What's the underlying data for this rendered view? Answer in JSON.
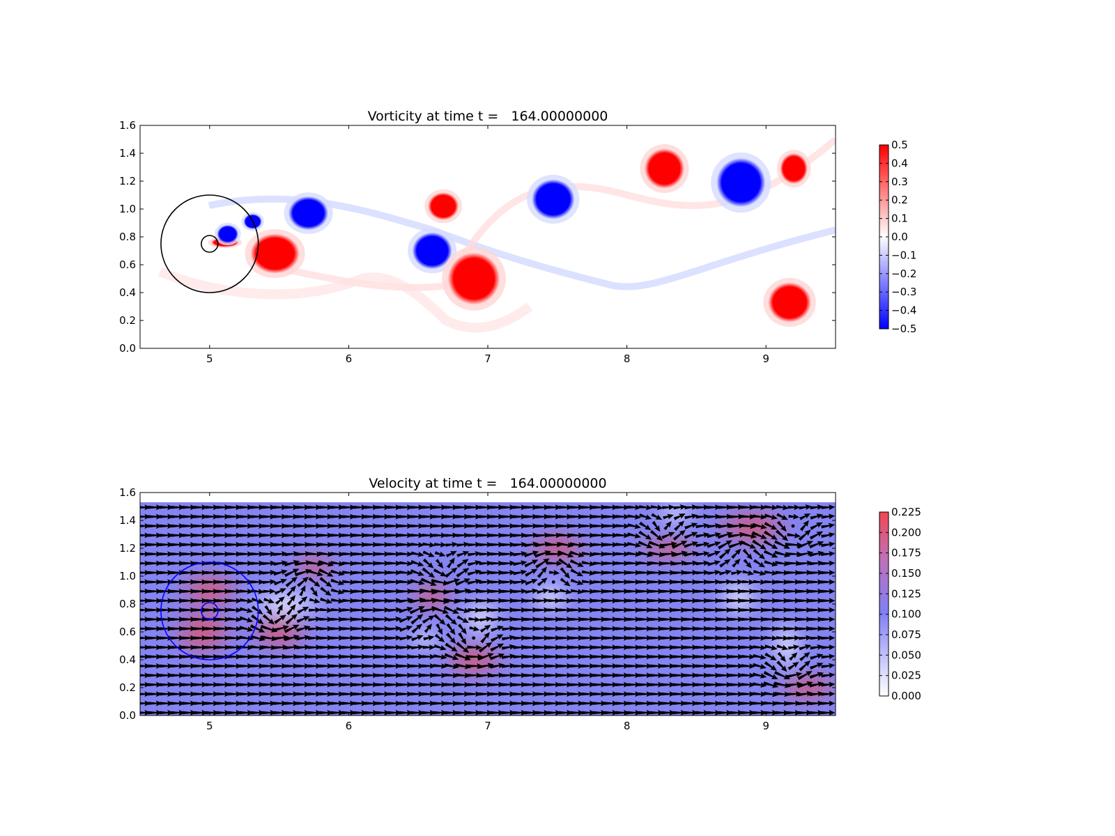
{
  "chart_data": [
    {
      "type": "heatmap",
      "title": "Vorticity at time t =   164.00000000",
      "xlim": [
        4.5,
        9.5
      ],
      "ylim": [
        0.0,
        1.6
      ],
      "xticks": [
        "5",
        "6",
        "7",
        "8",
        "9"
      ],
      "yticks": [
        "0.0",
        "0.2",
        "0.4",
        "0.6",
        "0.8",
        "1.0",
        "1.2",
        "1.4",
        "1.6"
      ],
      "colorbar": {
        "ticks": [
          "0.5",
          "0.4",
          "0.3",
          "0.2",
          "0.1",
          "0.0",
          "−0.1",
          "−0.2",
          "−0.3",
          "−0.4",
          "−0.5"
        ],
        "range": [
          -0.5,
          0.5
        ],
        "colors": [
          "#0000ff",
          "#ffffff",
          "#ff0000"
        ]
      },
      "circles": [
        {
          "cx": 5.0,
          "cy": 0.75,
          "r": 0.35,
          "color": "#000000"
        },
        {
          "cx": 5.0,
          "cy": 0.75,
          "r": 0.06,
          "color": "#000000"
        }
      ],
      "vortices": [
        {
          "x": 5.47,
          "y": 0.68,
          "rx": 0.16,
          "ry": 0.13,
          "sign": 1
        },
        {
          "x": 5.11,
          "y": 0.76,
          "rx": 0.09,
          "ry": 0.03,
          "sign": 1
        },
        {
          "x": 5.13,
          "y": 0.82,
          "rx": 0.07,
          "ry": 0.06,
          "sign": -1
        },
        {
          "x": 5.31,
          "y": 0.91,
          "rx": 0.06,
          "ry": 0.05,
          "sign": -1
        },
        {
          "x": 5.71,
          "y": 0.97,
          "rx": 0.13,
          "ry": 0.11,
          "sign": -1
        },
        {
          "x": 6.6,
          "y": 0.7,
          "rx": 0.13,
          "ry": 0.12,
          "sign": -1
        },
        {
          "x": 6.68,
          "y": 1.02,
          "rx": 0.1,
          "ry": 0.09,
          "sign": 1
        },
        {
          "x": 6.9,
          "y": 0.5,
          "rx": 0.17,
          "ry": 0.17,
          "sign": 1
        },
        {
          "x": 7.47,
          "y": 1.07,
          "rx": 0.14,
          "ry": 0.13,
          "sign": -1
        },
        {
          "x": 8.27,
          "y": 1.29,
          "rx": 0.13,
          "ry": 0.13,
          "sign": 1
        },
        {
          "x": 8.82,
          "y": 1.19,
          "rx": 0.16,
          "ry": 0.16,
          "sign": -1
        },
        {
          "x": 9.2,
          "y": 1.29,
          "rx": 0.09,
          "ry": 0.1,
          "sign": 1
        },
        {
          "x": 9.17,
          "y": 0.33,
          "rx": 0.14,
          "ry": 0.13,
          "sign": 1
        }
      ]
    },
    {
      "type": "heatmap",
      "title": "Velocity at time t =   164.00000000",
      "xlim": [
        4.5,
        9.5
      ],
      "ylim": [
        0.0,
        1.6
      ],
      "xticks": [
        "5",
        "6",
        "7",
        "8",
        "9"
      ],
      "yticks": [
        "0.0",
        "0.2",
        "0.4",
        "0.6",
        "0.8",
        "1.0",
        "1.2",
        "1.4",
        "1.6"
      ],
      "colorbar": {
        "ticks": [
          "0.225",
          "0.200",
          "0.175",
          "0.150",
          "0.125",
          "0.100",
          "0.075",
          "0.050",
          "0.025",
          "0.000"
        ],
        "range": [
          0.0,
          0.23
        ],
        "colors": [
          "#ffffff",
          "#8080f5",
          "#f04850"
        ]
      },
      "circles": [
        {
          "cx": 5.0,
          "cy": 0.75,
          "r": 0.35,
          "color": "#0000ff"
        },
        {
          "cx": 5.0,
          "cy": 0.75,
          "r": 0.06,
          "color": "#0000ff"
        }
      ],
      "background_speed": 0.1,
      "fast_regions": [
        {
          "x": 4.95,
          "y": 0.6,
          "rx": 0.25,
          "ry": 0.2,
          "speed": 0.2
        },
        {
          "x": 5.5,
          "y": 0.6,
          "rx": 0.25,
          "ry": 0.15,
          "speed": 0.2
        },
        {
          "x": 5.0,
          "y": 0.9,
          "rx": 0.25,
          "ry": 0.15,
          "speed": 0.18
        },
        {
          "x": 5.75,
          "y": 1.07,
          "rx": 0.18,
          "ry": 0.1,
          "speed": 0.21
        },
        {
          "x": 6.6,
          "y": 0.85,
          "rx": 0.18,
          "ry": 0.12,
          "speed": 0.22
        },
        {
          "x": 6.9,
          "y": 0.4,
          "rx": 0.25,
          "ry": 0.15,
          "speed": 0.22
        },
        {
          "x": 7.5,
          "y": 1.2,
          "rx": 0.25,
          "ry": 0.13,
          "speed": 0.2
        },
        {
          "x": 8.3,
          "y": 1.2,
          "rx": 0.25,
          "ry": 0.1,
          "speed": 0.19
        },
        {
          "x": 8.9,
          "y": 1.35,
          "rx": 0.3,
          "ry": 0.15,
          "speed": 0.21
        },
        {
          "x": 9.3,
          "y": 0.2,
          "rx": 0.25,
          "ry": 0.12,
          "speed": 0.22
        }
      ],
      "slow_regions": [
        {
          "x": 5.55,
          "y": 0.8,
          "rx": 0.3,
          "ry": 0.12,
          "speed": 0.02
        },
        {
          "x": 6.55,
          "y": 0.55,
          "rx": 0.12,
          "ry": 0.08,
          "speed": 0.02
        },
        {
          "x": 6.95,
          "y": 0.7,
          "rx": 0.15,
          "ry": 0.15,
          "speed": 0.02
        },
        {
          "x": 7.45,
          "y": 0.85,
          "rx": 0.15,
          "ry": 0.12,
          "speed": 0.02
        },
        {
          "x": 8.35,
          "y": 1.45,
          "rx": 0.15,
          "ry": 0.08,
          "speed": 0.02
        },
        {
          "x": 8.8,
          "y": 0.85,
          "rx": 0.15,
          "ry": 0.15,
          "speed": 0.02
        },
        {
          "x": 9.15,
          "y": 0.5,
          "rx": 0.12,
          "ry": 0.2,
          "speed": 0.02
        }
      ],
      "vortices": [
        {
          "x": 5.47,
          "y": 0.68,
          "s": 1
        },
        {
          "x": 5.71,
          "y": 0.97,
          "s": -1
        },
        {
          "x": 6.6,
          "y": 0.7,
          "s": -1
        },
        {
          "x": 6.68,
          "y": 1.02,
          "s": 1
        },
        {
          "x": 6.9,
          "y": 0.5,
          "s": 1
        },
        {
          "x": 7.47,
          "y": 1.07,
          "s": -1
        },
        {
          "x": 8.27,
          "y": 1.29,
          "s": 1
        },
        {
          "x": 8.82,
          "y": 1.19,
          "s": -1
        },
        {
          "x": 9.2,
          "y": 1.29,
          "s": 1
        },
        {
          "x": 9.17,
          "y": 0.33,
          "s": 1
        }
      ]
    }
  ]
}
